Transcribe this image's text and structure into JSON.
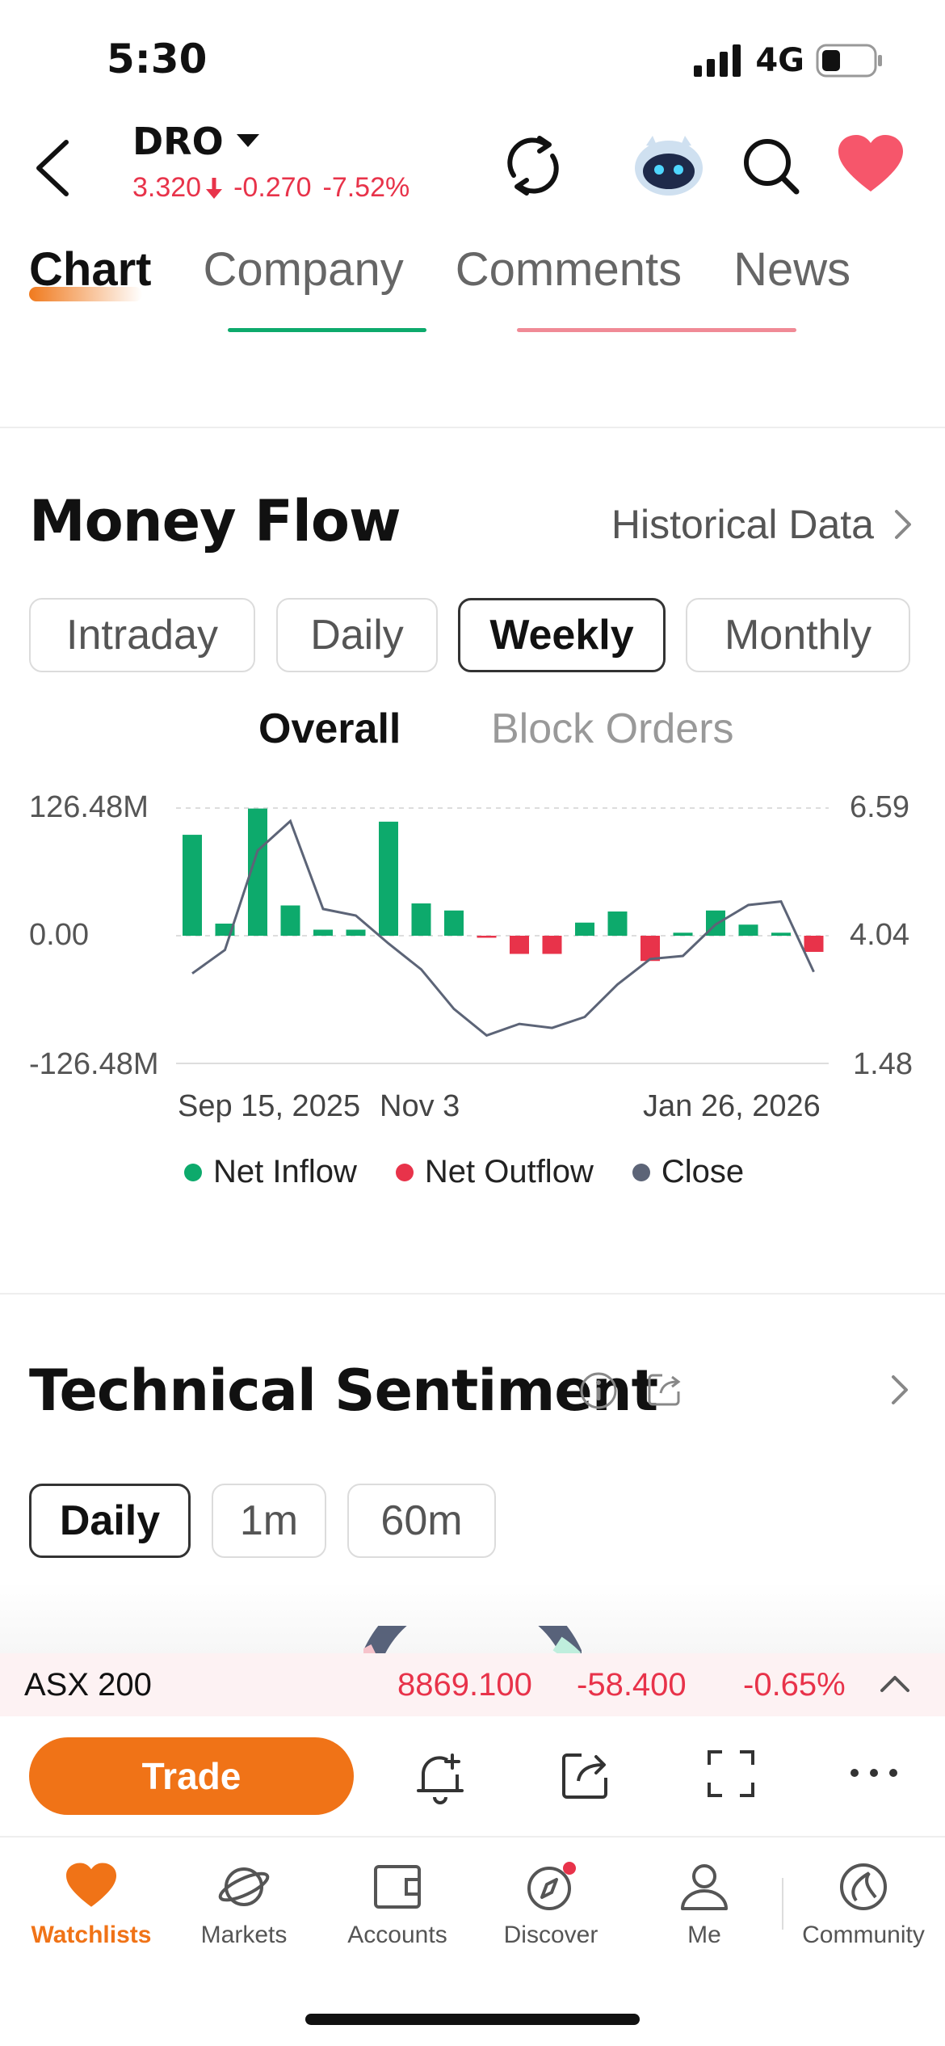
{
  "status_bar": {
    "time": "5:30",
    "network": "4G"
  },
  "header": {
    "ticker": "DRO",
    "price": "3.320",
    "change": "-0.270",
    "change_pct": "-7.52%",
    "icons": [
      "refresh-icon",
      "assistant-robot-icon",
      "search-icon",
      "favorite-heart-icon"
    ]
  },
  "tabs": [
    "Chart",
    "Company",
    "Comments",
    "News"
  ],
  "active_tab": "Chart",
  "money_flow": {
    "title": "Money Flow",
    "link": "Historical Data",
    "periods": [
      "Intraday",
      "Daily",
      "Weekly",
      "Monthly"
    ],
    "active_period": "Weekly",
    "views": [
      "Overall",
      "Block Orders"
    ],
    "active_view": "Overall",
    "legend": [
      "Net Inflow",
      "Net Outflow",
      "Close"
    ]
  },
  "chart_data": {
    "type": "bar",
    "left_axis": {
      "ticks": [
        "126.48M",
        "0.00",
        "-126.48M"
      ],
      "range": [
        -126.48,
        126.48
      ],
      "unit": "M"
    },
    "right_axis": {
      "ticks": [
        "6.59",
        "4.04",
        "1.48"
      ],
      "range": [
        1.48,
        6.59
      ]
    },
    "x_labels": [
      "Sep 15, 2025",
      "Nov 3",
      "Jan 26, 2026"
    ],
    "series": [
      {
        "name": "Net Inflow",
        "color": "#0daa6c"
      },
      {
        "name": "Net Outflow",
        "color": "#e8334a"
      },
      {
        "name": "Close",
        "color": "#5c6477"
      }
    ],
    "net_flow_values": [
      100,
      12,
      126,
      30,
      6,
      6,
      113,
      32,
      25,
      -2,
      -18,
      -18,
      13,
      24,
      -25,
      3,
      25,
      11,
      3,
      -16
    ],
    "close_values": [
      3.28,
      3.75,
      5.74,
      6.33,
      4.57,
      4.44,
      3.88,
      3.36,
      2.57,
      2.04,
      2.27,
      2.19,
      2.41,
      3.06,
      3.57,
      3.63,
      4.26,
      4.65,
      4.72,
      3.31
    ]
  },
  "technical_sentiment": {
    "title": "Technical Sentiment",
    "periods": [
      "Daily",
      "1m",
      "60m"
    ],
    "active_period": "Daily"
  },
  "index_bar": {
    "name": "ASX 200",
    "value": "8869.100",
    "change": "-58.400",
    "change_pct": "-0.65%"
  },
  "action_bar": {
    "trade_label": "Trade"
  },
  "bottom_nav": [
    {
      "label": "Watchlists",
      "icon": "heart-icon",
      "active": true
    },
    {
      "label": "Markets",
      "icon": "planet-icon",
      "active": false
    },
    {
      "label": "Accounts",
      "icon": "wallet-icon",
      "active": false
    },
    {
      "label": "Discover",
      "icon": "compass-icon",
      "active": false
    },
    {
      "label": "Me",
      "icon": "person-icon",
      "active": false
    },
    {
      "label": "Community",
      "icon": "community-icon",
      "active": false
    }
  ],
  "colors": {
    "accent": "#f07317",
    "up": "#0daa6c",
    "down": "#e8334a",
    "close_line": "#5c6477"
  }
}
